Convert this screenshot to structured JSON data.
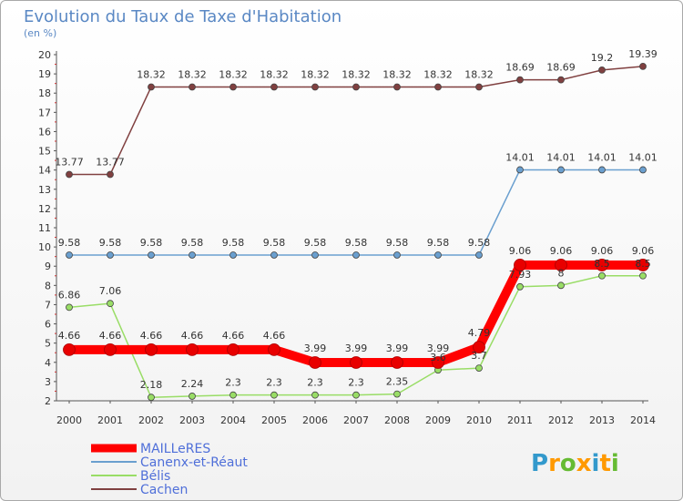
{
  "chart_data": {
    "type": "line",
    "title": "Evolution du Taux de Taxe d'Habitation",
    "subtitle": "(en %)",
    "x": [
      "2000",
      "2001",
      "2002",
      "2003",
      "2004",
      "2005",
      "2006",
      "2007",
      "2008",
      "2009",
      "2010",
      "2011",
      "2012",
      "2013",
      "2014"
    ],
    "ylim": [
      2,
      20
    ],
    "yticks": [
      2,
      3,
      4,
      5,
      6,
      7,
      8,
      9,
      10,
      11,
      12,
      13,
      14,
      15,
      16,
      17,
      18,
      19,
      20
    ],
    "grid": false,
    "legend": "bottom-left",
    "series": [
      {
        "name": "MAILLeRES",
        "color": "#ff0000",
        "values": [
          4.66,
          4.66,
          4.66,
          4.66,
          4.66,
          4.66,
          3.99,
          3.99,
          3.99,
          3.99,
          4.79,
          9.06,
          9.06,
          9.06,
          9.06
        ],
        "labels": [
          "4.66",
          "4.66",
          "4.66",
          "4.66",
          "4.66",
          "4.66",
          "3.99",
          "3.99",
          "3.99",
          "3.99",
          "4.79",
          "9.06",
          "9.06",
          "9.06",
          "9.06"
        ]
      },
      {
        "name": "Canenx-et-Réaut",
        "color": "#6a9fcf",
        "values": [
          9.58,
          9.58,
          9.58,
          9.58,
          9.58,
          9.58,
          9.58,
          9.58,
          9.58,
          9.58,
          9.58,
          14.01,
          14.01,
          14.01,
          14.01
        ],
        "labels": [
          "9.58",
          "9.58",
          "9.58",
          "9.58",
          "9.58",
          "9.58",
          "9.58",
          "9.58",
          "9.58",
          "9.58",
          "9.58",
          "14.01",
          "14.01",
          "14.01",
          "14.01"
        ]
      },
      {
        "name": "Bélis",
        "color": "#99dd66",
        "values": [
          6.86,
          7.06,
          2.18,
          2.24,
          2.3,
          2.3,
          2.3,
          2.3,
          2.35,
          3.6,
          3.7,
          7.93,
          8,
          8.5,
          8.5
        ],
        "labels": [
          "6.86",
          "7.06",
          "2.18",
          "2.24",
          "2.3",
          "2.3",
          "2.3",
          "2.3",
          "2.35",
          "3.6",
          "3.7",
          "7.93",
          "8",
          "8.5",
          "8.5"
        ]
      },
      {
        "name": "Cachen",
        "color": "#804040",
        "values": [
          13.77,
          13.77,
          18.32,
          18.32,
          18.32,
          18.32,
          18.32,
          18.32,
          18.32,
          18.32,
          18.32,
          18.69,
          18.69,
          19.2,
          19.39
        ],
        "labels": [
          "13.77",
          "13.77",
          "18.32",
          "18.32",
          "18.32",
          "18.32",
          "18.32",
          "18.32",
          "18.32",
          "18.32",
          "18.32",
          "18.69",
          "18.69",
          "19.2",
          "19.39"
        ]
      }
    ]
  },
  "logo": {
    "text": "Proxiti",
    "letters": [
      "P",
      "r",
      "o",
      "x",
      "i",
      "t",
      "i"
    ],
    "colors": [
      "#3399cc",
      "#ff9900",
      "#66bb33",
      "#ff9900",
      "#3399cc",
      "#ff9900",
      "#66bb33"
    ]
  }
}
